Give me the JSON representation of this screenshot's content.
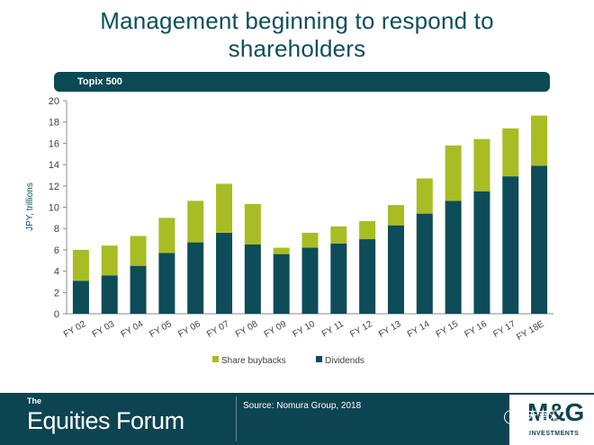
{
  "title": {
    "line1": "Management beginning to respond to",
    "line2": "shareholders"
  },
  "banner": {
    "label": "Topix 500"
  },
  "chart_data": {
    "type": "bar",
    "stacked": true,
    "categories": [
      "FY 02",
      "FY 03",
      "FY 04",
      "FY 05",
      "FY 06",
      "FY 07",
      "FY 08",
      "FY 09",
      "FY 10",
      "FY 11",
      "FY 12",
      "FY 13",
      "FY 14",
      "FY 15",
      "FY 16",
      "FY 17",
      "FY 18E"
    ],
    "series": [
      {
        "name": "Dividends",
        "color": "#0d4c58",
        "values": [
          3.1,
          3.6,
          4.5,
          5.7,
          6.7,
          7.6,
          6.5,
          5.6,
          6.2,
          6.6,
          7.0,
          8.3,
          9.4,
          10.6,
          11.5,
          12.9,
          13.9
        ]
      },
      {
        "name": "Share buybacks",
        "color": "#a8bd24",
        "values": [
          2.9,
          2.8,
          2.8,
          3.3,
          3.9,
          4.6,
          3.8,
          0.6,
          1.4,
          1.6,
          1.7,
          1.9,
          3.3,
          5.2,
          4.9,
          4.5,
          4.7
        ]
      }
    ],
    "ylabel": "JPY, trillions",
    "ylim": [
      0,
      20
    ],
    "yticks": [
      0,
      2,
      4,
      6,
      8,
      10,
      12,
      14,
      16,
      18,
      20
    ],
    "legend": [
      "Share buybacks",
      "Dividends"
    ],
    "legend_position": "bottom-center"
  },
  "footer": {
    "brand_prefix": "The",
    "brand_name": "Equities Forum",
    "source": "Source: Nomura Group, 2018",
    "logo_mg": "M&G",
    "logo_sub": "INVESTMENTS",
    "watermark": "天富汇"
  }
}
